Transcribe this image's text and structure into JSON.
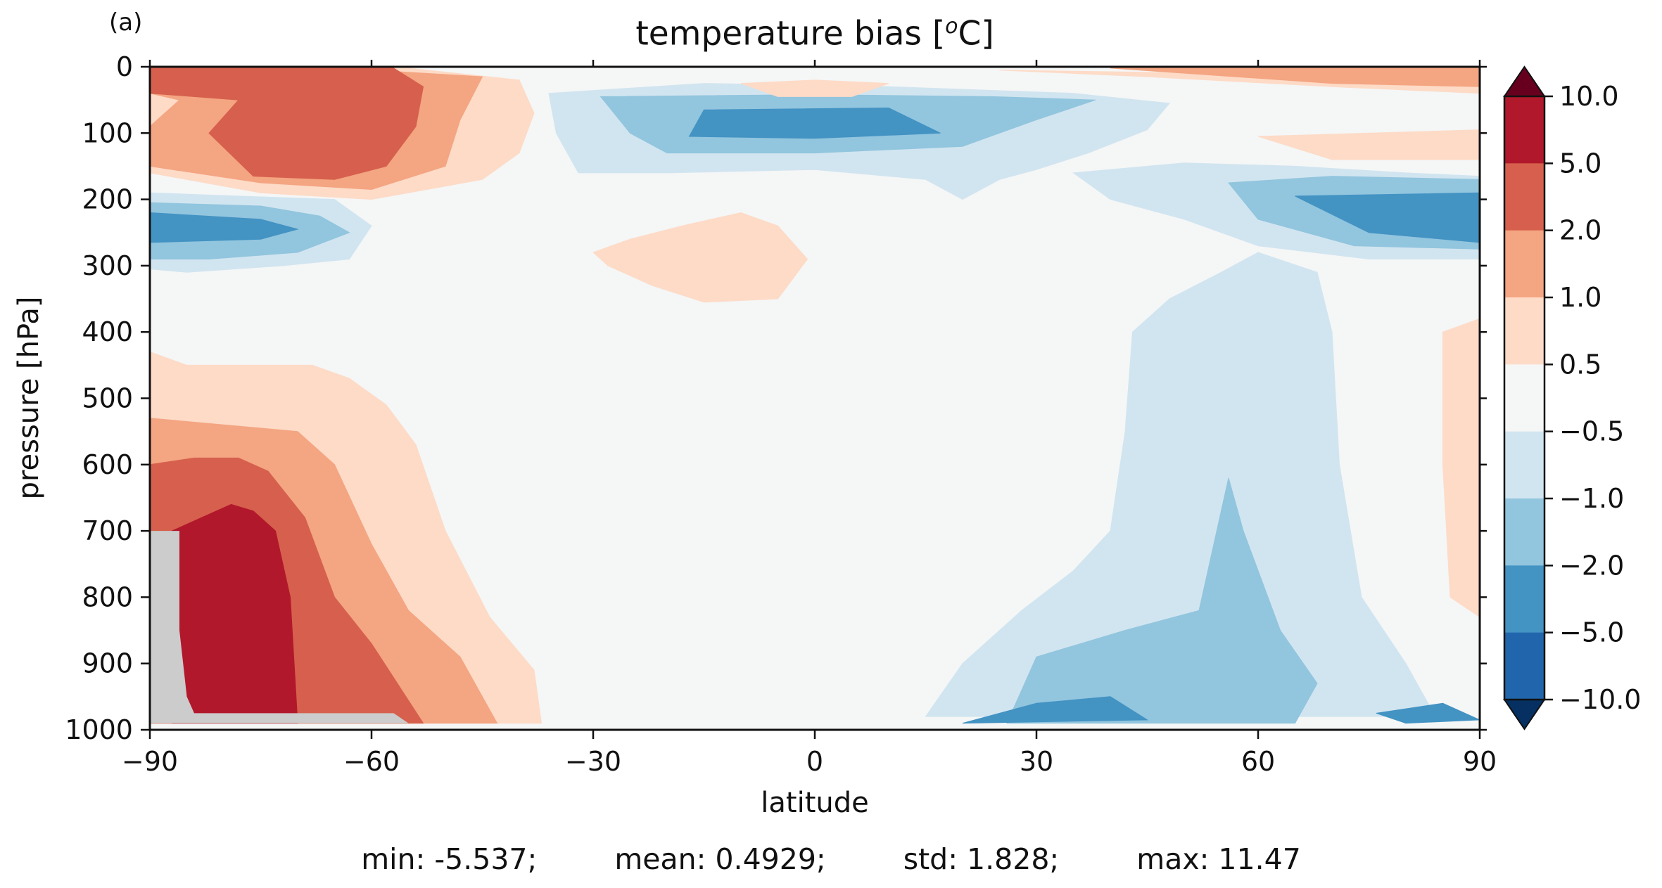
{
  "chart_data": {
    "type": "heatmap",
    "panel_label": "(a)",
    "title": "temperature bias [",
    "title_superscript": "o",
    "title_suffix": "C]",
    "xlabel": "latitude",
    "ylabel": "pressure [hPa]",
    "xlim": [
      -90,
      90
    ],
    "ylim": [
      1000,
      0
    ],
    "xticks": [
      -90,
      -60,
      -30,
      0,
      30,
      60,
      90
    ],
    "xtick_labels": [
      "−90",
      "−60",
      "−30",
      "0",
      "30",
      "60",
      "90"
    ],
    "yticks": [
      0,
      100,
      200,
      300,
      400,
      500,
      600,
      700,
      800,
      900,
      1000
    ],
    "ytick_labels": [
      "0",
      "100",
      "200",
      "300",
      "400",
      "500",
      "600",
      "700",
      "800",
      "900",
      "1000"
    ],
    "levels": [
      -10,
      -5,
      -2,
      -1,
      -0.5,
      0.5,
      1,
      2,
      5,
      10
    ],
    "colorbar_labels": [
      "10.0",
      "5.0",
      "2.0",
      "1.0",
      "0.5",
      "−0.5",
      "−1.0",
      "−2.0",
      "−5.0",
      "−10.0"
    ],
    "colorbar_extend": "both",
    "colors": {
      "below_min": "#053061",
      "bins": [
        "#2166ac",
        "#4393c3",
        "#92c5de",
        "#d1e5f0",
        "#f5f6f6",
        "#fddbc7",
        "#f4a582",
        "#d6604d",
        "#b2182b"
      ],
      "above_max": "#67001f",
      "missing": "#cccccc"
    },
    "regions": [
      {
        "name": "sh-upper-warm-outer",
        "bin": 1,
        "points": [
          [
            -90,
            8
          ],
          [
            -55,
            2
          ],
          [
            -40,
            20
          ],
          [
            -38,
            70
          ],
          [
            -40,
            130
          ],
          [
            -45,
            170
          ],
          [
            -60,
            200
          ],
          [
            -75,
            190
          ],
          [
            -90,
            160
          ]
        ]
      },
      {
        "name": "sh-upper-warm-mid",
        "bin": 2,
        "points": [
          [
            -90,
            10
          ],
          [
            -60,
            5
          ],
          [
            -45,
            15
          ],
          [
            -48,
            80
          ],
          [
            -50,
            150
          ],
          [
            -60,
            185
          ],
          [
            -75,
            175
          ],
          [
            -90,
            150
          ],
          [
            -90,
            90
          ],
          [
            -86,
            50
          ],
          [
            -90,
            40
          ]
        ]
      },
      {
        "name": "sh-upper-warm-core",
        "bin": 3,
        "points": [
          [
            -90,
            2
          ],
          [
            -57,
            2
          ],
          [
            -53,
            30
          ],
          [
            -54,
            90
          ],
          [
            -58,
            150
          ],
          [
            -65,
            170
          ],
          [
            -76,
            165
          ],
          [
            -82,
            100
          ],
          [
            -78,
            50
          ],
          [
            -90,
            40
          ]
        ]
      },
      {
        "name": "sh-upper-cold-outer",
        "bin": -1,
        "points": [
          [
            -90,
            190
          ],
          [
            -78,
            195
          ],
          [
            -65,
            200
          ],
          [
            -60,
            240
          ],
          [
            -63,
            290
          ],
          [
            -72,
            300
          ],
          [
            -85,
            310
          ],
          [
            -90,
            305
          ]
        ]
      },
      {
        "name": "sh-upper-cold-mid",
        "bin": -2,
        "points": [
          [
            -90,
            205
          ],
          [
            -75,
            210
          ],
          [
            -67,
            225
          ],
          [
            -63,
            250
          ],
          [
            -70,
            280
          ],
          [
            -82,
            290
          ],
          [
            -90,
            290
          ]
        ]
      },
      {
        "name": "sh-upper-cold-core",
        "bin": -3,
        "points": [
          [
            -90,
            220
          ],
          [
            -75,
            230
          ],
          [
            -70,
            245
          ],
          [
            -75,
            260
          ],
          [
            -90,
            265
          ]
        ]
      },
      {
        "name": "sh-lower-warm-outer",
        "bin": 1,
        "points": [
          [
            -90,
            430
          ],
          [
            -85,
            450
          ],
          [
            -75,
            450
          ],
          [
            -68,
            450
          ],
          [
            -63,
            470
          ],
          [
            -58,
            510
          ],
          [
            -54,
            570
          ],
          [
            -50,
            700
          ],
          [
            -44,
            830
          ],
          [
            -38,
            910
          ],
          [
            -37,
            990
          ],
          [
            -90,
            990
          ]
        ]
      },
      {
        "name": "sh-lower-warm-mid",
        "bin": 2,
        "points": [
          [
            -90,
            530
          ],
          [
            -80,
            540
          ],
          [
            -70,
            550
          ],
          [
            -65,
            600
          ],
          [
            -60,
            720
          ],
          [
            -55,
            820
          ],
          [
            -48,
            890
          ],
          [
            -43,
            990
          ],
          [
            -90,
            990
          ]
        ]
      },
      {
        "name": "sh-lower-warm-core",
        "bin": 3,
        "points": [
          [
            -90,
            600
          ],
          [
            -84,
            590
          ],
          [
            -78,
            590
          ],
          [
            -74,
            610
          ],
          [
            -69,
            680
          ],
          [
            -65,
            800
          ],
          [
            -60,
            870
          ],
          [
            -53,
            990
          ],
          [
            -90,
            990
          ]
        ]
      },
      {
        "name": "sh-lower-warm-max",
        "bin": 4,
        "points": [
          [
            -87,
            700
          ],
          [
            -83,
            680
          ],
          [
            -79,
            660
          ],
          [
            -76,
            670
          ],
          [
            -73,
            700
          ],
          [
            -71,
            800
          ],
          [
            -70,
            990
          ],
          [
            -87,
            990
          ]
        ]
      },
      {
        "name": "tropical-upper-cold-outer",
        "bin": -1,
        "points": [
          [
            -36,
            40
          ],
          [
            -15,
            25
          ],
          [
            10,
            30
          ],
          [
            35,
            40
          ],
          [
            48,
            55
          ],
          [
            45,
            95
          ],
          [
            37,
            130
          ],
          [
            30,
            155
          ],
          [
            25,
            170
          ],
          [
            20,
            200
          ],
          [
            15,
            170
          ],
          [
            0,
            155
          ],
          [
            -20,
            160
          ],
          [
            -32,
            160
          ],
          [
            -35,
            100
          ]
        ]
      },
      {
        "name": "tropical-upper-cold-mid",
        "bin": -2,
        "points": [
          [
            -29,
            45
          ],
          [
            0,
            42
          ],
          [
            24,
            45
          ],
          [
            38,
            50
          ],
          [
            30,
            80
          ],
          [
            20,
            120
          ],
          [
            0,
            130
          ],
          [
            -20,
            130
          ],
          [
            -25,
            100
          ]
        ]
      },
      {
        "name": "tropical-upper-cold-core",
        "bin": -3,
        "points": [
          [
            -15,
            65
          ],
          [
            10,
            62
          ],
          [
            17,
            100
          ],
          [
            0,
            108
          ],
          [
            -17,
            105
          ]
        ]
      },
      {
        "name": "eq-strat-warm",
        "bin": 1,
        "points": [
          [
            -10,
            25
          ],
          [
            0,
            20
          ],
          [
            10,
            25
          ],
          [
            5,
            45
          ],
          [
            -5,
            45
          ]
        ]
      },
      {
        "name": "tropical-mid-warm",
        "bin": 1,
        "points": [
          [
            -30,
            280
          ],
          [
            -25,
            260
          ],
          [
            -18,
            240
          ],
          [
            -10,
            220
          ],
          [
            -5,
            240
          ],
          [
            -1,
            290
          ],
          [
            -5,
            350
          ],
          [
            -15,
            355
          ],
          [
            -22,
            330
          ],
          [
            -28,
            300
          ]
        ]
      },
      {
        "name": "nh-upper-cold-outer",
        "bin": -1,
        "points": [
          [
            35,
            160
          ],
          [
            50,
            145
          ],
          [
            65,
            150
          ],
          [
            80,
            160
          ],
          [
            90,
            165
          ],
          [
            90,
            290
          ],
          [
            75,
            290
          ],
          [
            60,
            270
          ],
          [
            50,
            230
          ],
          [
            40,
            200
          ]
        ]
      },
      {
        "name": "nh-upper-cold-mid",
        "bin": -2,
        "points": [
          [
            56,
            175
          ],
          [
            70,
            165
          ],
          [
            90,
            170
          ],
          [
            90,
            275
          ],
          [
            73,
            270
          ],
          [
            60,
            230
          ]
        ]
      },
      {
        "name": "nh-upper-cold-core",
        "bin": -3,
        "points": [
          [
            65,
            195
          ],
          [
            90,
            190
          ],
          [
            90,
            265
          ],
          [
            75,
            250
          ]
        ]
      },
      {
        "name": "nh-column-cold-outer",
        "bin": -1,
        "points": [
          [
            43,
            400
          ],
          [
            48,
            350
          ],
          [
            55,
            310
          ],
          [
            60,
            280
          ],
          [
            68,
            310
          ],
          [
            70,
            400
          ],
          [
            71,
            600
          ],
          [
            74,
            800
          ],
          [
            80,
            900
          ],
          [
            84,
            980
          ],
          [
            15,
            980
          ],
          [
            20,
            900
          ],
          [
            28,
            820
          ],
          [
            35,
            760
          ],
          [
            40,
            700
          ],
          [
            42,
            550
          ]
        ]
      },
      {
        "name": "nh-column-cold-mid",
        "bin": -2,
        "points": [
          [
            56,
            620
          ],
          [
            58,
            700
          ],
          [
            63,
            850
          ],
          [
            68,
            930
          ],
          [
            65,
            990
          ],
          [
            26,
            990
          ],
          [
            30,
            890
          ],
          [
            42,
            850
          ],
          [
            52,
            820
          ]
        ]
      },
      {
        "name": "nh-column-cold-core",
        "bin": -3,
        "points": [
          [
            20,
            990
          ],
          [
            30,
            960
          ],
          [
            40,
            950
          ],
          [
            45,
            985
          ]
        ]
      },
      {
        "name": "nh-polar-cold-core",
        "bin": -3,
        "points": [
          [
            76,
            975
          ],
          [
            85,
            960
          ],
          [
            90,
            985
          ],
          [
            80,
            990
          ]
        ]
      },
      {
        "name": "nh-upper-warm",
        "bin": 1,
        "points": [
          [
            60,
            105
          ],
          [
            90,
            95
          ],
          [
            90,
            140
          ],
          [
            70,
            140
          ]
        ]
      },
      {
        "name": "nh-strat-warm",
        "bin": 1,
        "points": [
          [
            25,
            5
          ],
          [
            55,
            10
          ],
          [
            90,
            8
          ],
          [
            90,
            40
          ],
          [
            70,
            30
          ],
          [
            45,
            15
          ]
        ]
      },
      {
        "name": "nh-strat-warm-2",
        "bin": 2,
        "points": [
          [
            40,
            2
          ],
          [
            90,
            2
          ],
          [
            90,
            30
          ],
          [
            70,
            25
          ]
        ]
      },
      {
        "name": "nh-lower-warm",
        "bin": 1,
        "points": [
          [
            85,
            400
          ],
          [
            90,
            380
          ],
          [
            90,
            830
          ],
          [
            86,
            800
          ],
          [
            85,
            600
          ]
        ]
      }
    ],
    "missing_region": {
      "points": [
        [
          -90,
          700
        ],
        [
          -86,
          700
        ],
        [
          -86,
          850
        ],
        [
          -85,
          950
        ],
        [
          -84,
          975
        ],
        [
          -57,
          975
        ],
        [
          -55,
          990
        ],
        [
          -90,
          990
        ]
      ]
    },
    "stats": {
      "min": "min: -5.537;",
      "mean": "mean: 0.4929;",
      "std": "std: 1.828;",
      "max": "max: 11.47"
    }
  }
}
